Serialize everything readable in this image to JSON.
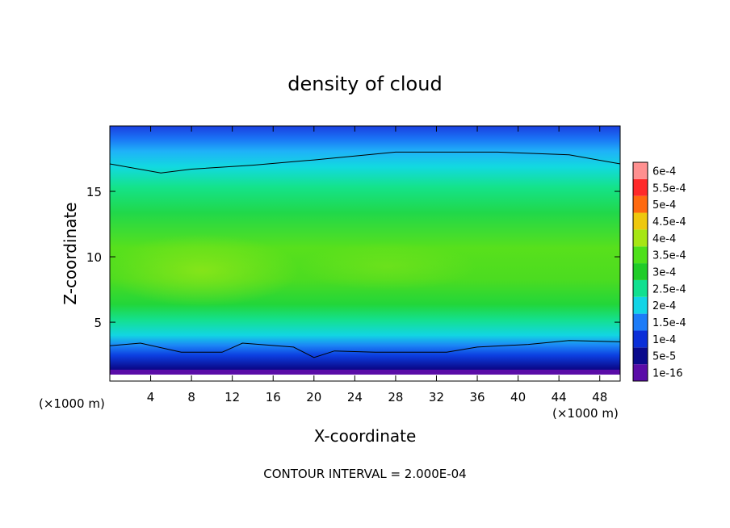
{
  "chart_data": {
    "type": "heatmap",
    "title": "density of cloud",
    "xlabel": "X-coordinate",
    "ylabel": "Z-coordinate",
    "x_unit_left": "(×1000 m)",
    "x_unit_right": "(×1000 m)",
    "xlim": [
      0,
      50
    ],
    "ylim": [
      0.5,
      20
    ],
    "x_ticks": [
      4,
      8,
      12,
      16,
      20,
      24,
      28,
      32,
      36,
      40,
      44,
      48
    ],
    "y_ticks": [
      5,
      10,
      15
    ],
    "footer": "CONTOUR INTERVAL = 2.000E-04",
    "colorbar": {
      "labels": [
        "1e-16",
        "5e-5",
        "1e-4",
        "1.5e-4",
        "2e-4",
        "2.5e-4",
        "3e-4",
        "3.5e-4",
        "4e-4",
        "4.5e-4",
        "5e-4",
        "5.5e-4",
        "6e-4"
      ],
      "levels": [
        1e-16,
        5e-05,
        0.0001,
        0.00015,
        0.0002,
        0.00025,
        0.0003,
        0.00035,
        0.0004,
        0.00045,
        0.0005,
        0.00055,
        0.0006
      ],
      "colors": [
        "#5a0ca8",
        "#0a0a8c",
        "#0b2fd8",
        "#1c7cf8",
        "#12d4e6",
        "#10e090",
        "#20cc28",
        "#4ee01a",
        "#a6e614",
        "#eec80e",
        "#ff6a10",
        "#ff2a2a",
        "#ff9090"
      ]
    },
    "contour_2e-4_top": [
      {
        "x": 0,
        "z": 17.1
      },
      {
        "x": 5,
        "z": 16.4
      },
      {
        "x": 8,
        "z": 16.7
      },
      {
        "x": 14,
        "z": 17.0
      },
      {
        "x": 20,
        "z": 17.4
      },
      {
        "x": 28,
        "z": 18.0
      },
      {
        "x": 38,
        "z": 18.0
      },
      {
        "x": 45,
        "z": 17.8
      },
      {
        "x": 50,
        "z": 17.1
      }
    ],
    "contour_2e-4_bottom": [
      {
        "x": 0,
        "z": 3.2
      },
      {
        "x": 3,
        "z": 3.4
      },
      {
        "x": 7,
        "z": 2.7
      },
      {
        "x": 11,
        "z": 2.7
      },
      {
        "x": 13,
        "z": 3.4
      },
      {
        "x": 18,
        "z": 3.1
      },
      {
        "x": 20,
        "z": 2.3
      },
      {
        "x": 22,
        "z": 2.8
      },
      {
        "x": 26,
        "z": 2.7
      },
      {
        "x": 33,
        "z": 2.7
      },
      {
        "x": 36,
        "z": 3.1
      },
      {
        "x": 41,
        "z": 3.3
      },
      {
        "x": 45,
        "z": 3.6
      },
      {
        "x": 50,
        "z": 3.5
      }
    ],
    "legend_placement": "right"
  }
}
